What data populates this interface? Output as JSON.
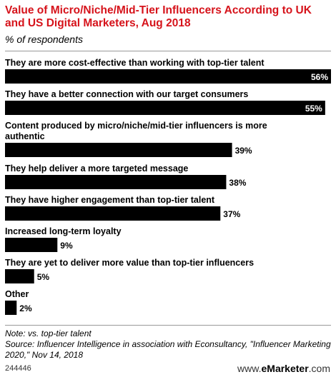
{
  "chart_data": {
    "type": "bar",
    "title": "Value of Micro/Niche/Mid-Tier Influencers According to UK and US Digital Marketers, Aug 2018",
    "subtitle": "% of respondents",
    "categories": [
      "They are more cost-effective than working with top-tier talent",
      "They have a better connection with our target consumers",
      "Content produced by micro/niche/mid-tier influencers is more authentic",
      "They help deliver a more targeted message",
      "They have higher engagement than top-tier talent",
      "Increased long-term loyalty",
      "They are yet to deliver more value than top-tier influencers",
      "Other"
    ],
    "values": [
      56,
      55,
      39,
      38,
      37,
      9,
      5,
      2
    ],
    "value_labels": [
      "56%",
      "55%",
      "39%",
      "38%",
      "37%",
      "9%",
      "5%",
      "2%"
    ],
    "xlim": [
      0,
      56
    ],
    "bar_color": "#000000"
  },
  "footer": {
    "note": "Note: vs. top-tier talent",
    "source": "Source: Influencer Intelligence in association with Econsultancy, \"Influencer Marketing 2020,\" Nov 14, 2018",
    "chart_id": "244446",
    "brand_www": "www.",
    "brand_name": "eMarketer",
    "brand_tld": ".com"
  }
}
